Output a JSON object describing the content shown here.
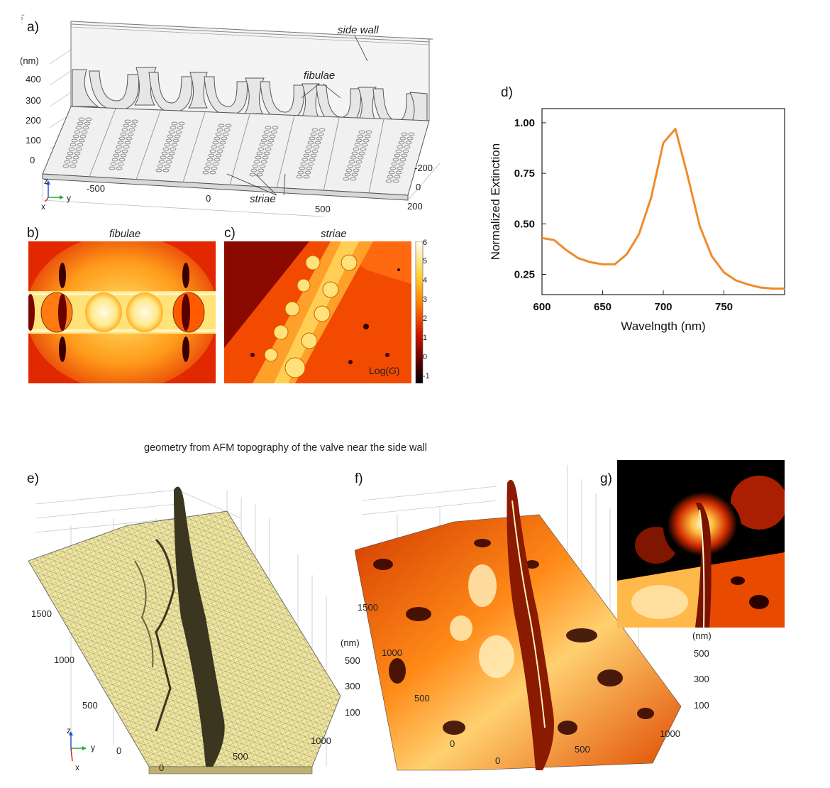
{
  "panels": {
    "a": {
      "letter": "a)",
      "labels": {
        "side_wall": "side wall",
        "fibulae": "fibulae",
        "striae": "striae"
      },
      "z_unit": "(nm)",
      "z_ticks": [
        "400",
        "300",
        "200",
        "100",
        "0"
      ],
      "x_ticks": [
        "-500",
        "0",
        "500"
      ],
      "y_ticks": [
        "-200",
        "0",
        "200"
      ],
      "axes": {
        "z": "z",
        "y": "y",
        "x": "x"
      }
    },
    "b": {
      "letter": "b)",
      "title": "fibulae"
    },
    "c": {
      "letter": "c)",
      "title": "striae",
      "colorbar_label": "Log(G)",
      "colorbar_ticks": [
        "6",
        "5",
        "4",
        "3",
        "2",
        "1",
        "0",
        "-1"
      ]
    },
    "d": {
      "letter": "d)"
    },
    "e": {
      "letter": "e)",
      "y_ticks": [
        "1500",
        "1000",
        "500",
        "0"
      ],
      "x_ticks": [
        "0",
        "500",
        "1000"
      ],
      "z_unit": "(nm)",
      "z_ticks": [
        "500",
        "300",
        "100"
      ],
      "axes": {
        "z": "z",
        "y": "y",
        "x": "x"
      }
    },
    "f": {
      "letter": "f)",
      "y_ticks": [
        "1500",
        "1000",
        "500",
        "0"
      ],
      "x_ticks": [
        "0",
        "500",
        "1000"
      ]
    },
    "g": {
      "letter": "g)",
      "z_unit": "(nm)",
      "z_ticks": [
        "500",
        "300",
        "100"
      ]
    }
  },
  "afm_caption": "geometry from AFM topography of the valve near the side wall",
  "chart_data": {
    "type": "line",
    "title": "",
    "xlabel": "Wavelngth (nm)",
    "ylabel": "Normalized Extinction",
    "xlim": [
      600,
      800
    ],
    "ylim": [
      0.15,
      1.07
    ],
    "x_ticks": [
      600,
      650,
      700,
      750
    ],
    "y_ticks": [
      0.25,
      0.5,
      0.75,
      1.0
    ],
    "y_tick_labels": [
      "0.25",
      "0.50",
      "0.75",
      "1.00"
    ],
    "color": "#f08a2c",
    "series": [
      {
        "x": [
          600,
          610,
          620,
          630,
          640,
          650,
          660,
          670,
          680,
          690,
          700,
          710,
          720,
          730,
          740,
          750,
          760,
          770,
          780,
          790,
          800
        ],
        "y": [
          0.43,
          0.42,
          0.37,
          0.33,
          0.31,
          0.3,
          0.3,
          0.35,
          0.45,
          0.63,
          0.9,
          0.97,
          0.74,
          0.49,
          0.34,
          0.26,
          0.22,
          0.2,
          0.185,
          0.18,
          0.18
        ]
      }
    ]
  }
}
